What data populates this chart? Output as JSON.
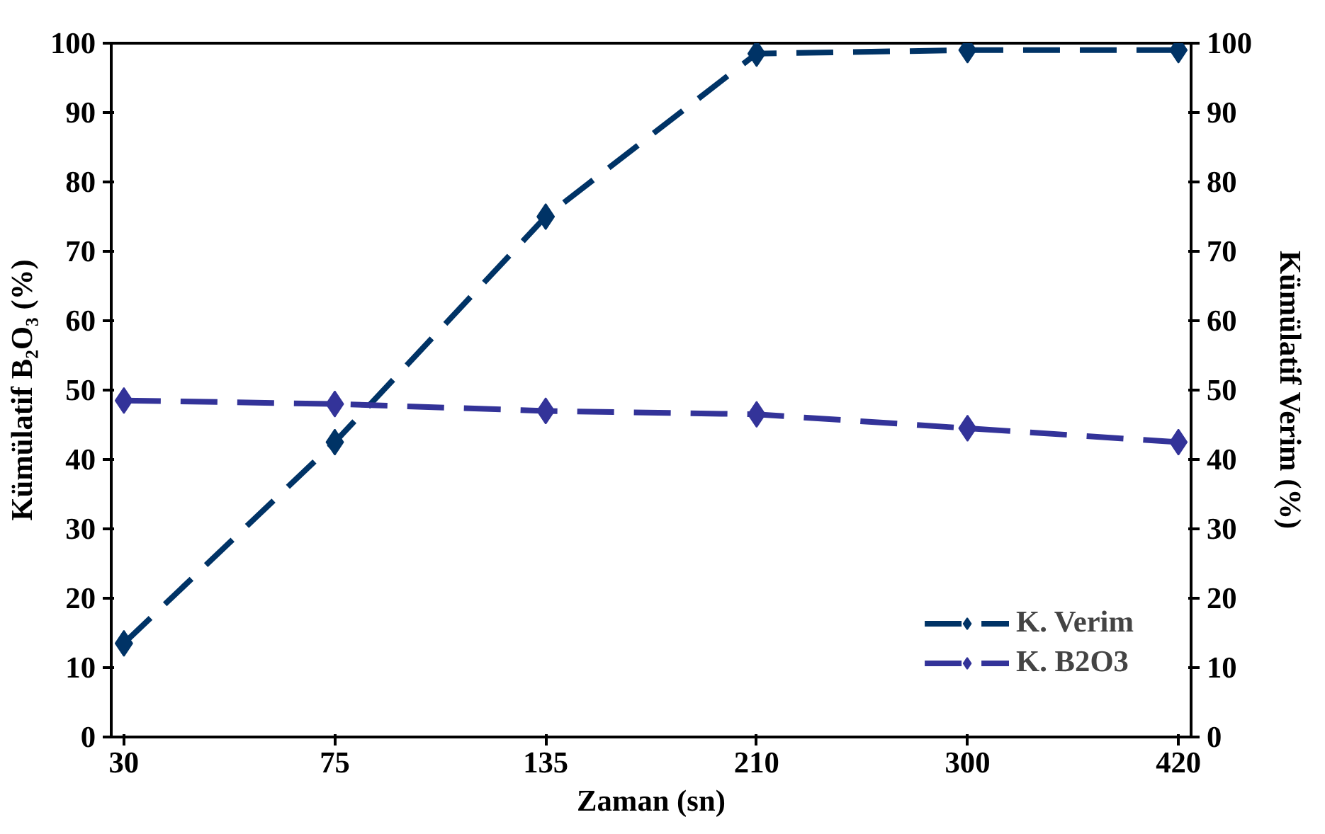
{
  "chart_data": {
    "type": "line",
    "xlabel": "Zaman (sn)",
    "ylabel": "Kümülatif B₂O₃ (%)",
    "y2label": "Kümülatif Verim (%)",
    "categories": [
      "30",
      "75",
      "135",
      "210",
      "300",
      "420"
    ],
    "ylim": [
      0,
      100
    ],
    "yticks": [
      0,
      10,
      20,
      30,
      40,
      50,
      60,
      70,
      80,
      90,
      100
    ],
    "y2lim": [
      0,
      100
    ],
    "y2ticks": [
      0,
      10,
      20,
      30,
      40,
      50,
      60,
      70,
      80,
      90,
      100
    ],
    "series": [
      {
        "name": "K. Verim",
        "color": "#003366",
        "line_style": "dashed",
        "values": [
          13.5,
          42.5,
          75,
          98.5,
          99,
          99
        ]
      },
      {
        "name": "K. B2O3",
        "color": "#333399",
        "line_style": "dashed",
        "values": [
          48.5,
          48,
          47,
          46.5,
          44.5,
          42.5
        ]
      }
    ],
    "marker": "diamond",
    "grid": false,
    "legend": "bottom right"
  }
}
